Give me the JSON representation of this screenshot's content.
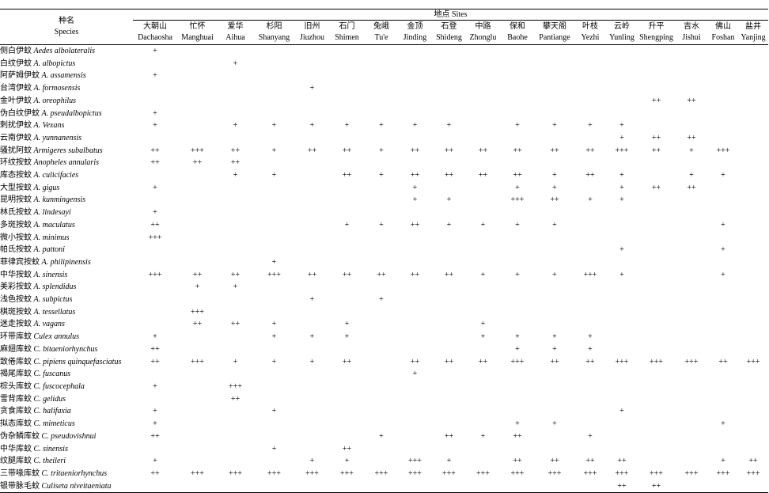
{
  "header": {
    "species_zh": "种名",
    "species_en": "Species",
    "sites_label": "地点  Sites"
  },
  "sites": [
    {
      "zh": "大朝山",
      "en": "Dachaosha"
    },
    {
      "zh": "忙怀",
      "en": "Manghuai"
    },
    {
      "zh": "爱华",
      "en": "Aihua"
    },
    {
      "zh": "杉阳",
      "en": "Shanyang"
    },
    {
      "zh": "旧州",
      "en": "Jiuzhou"
    },
    {
      "zh": "石门",
      "en": "Shimen"
    },
    {
      "zh": "兔峨",
      "en": "Tu'e"
    },
    {
      "zh": "金顶",
      "en": "Jinding"
    },
    {
      "zh": "石登",
      "en": "Shideng"
    },
    {
      "zh": "中路",
      "en": "Zhonglu"
    },
    {
      "zh": "保和",
      "en": "Baohe"
    },
    {
      "zh": "攀天阁",
      "en": "Pantiange"
    },
    {
      "zh": "叶枝",
      "en": "Yezhi"
    },
    {
      "zh": "云岭",
      "en": "Yunling"
    },
    {
      "zh": "升平",
      "en": "Shengping"
    },
    {
      "zh": "吉水",
      "en": "Jishui"
    },
    {
      "zh": "佛山",
      "en": "Foshan"
    },
    {
      "zh": "盐井",
      "en": "Yanjing"
    }
  ],
  "rows": [
    {
      "zh": "侧白伊蚊",
      "sci": "Aedes albolateralis",
      "v": [
        "+",
        "",
        "",
        "",
        "",
        "",
        "",
        "",
        "",
        "",
        "",
        "",
        "",
        "",
        "",
        "",
        "",
        ""
      ]
    },
    {
      "zh": "白纹伊蚊",
      "sci": "A. albopictus",
      "v": [
        "",
        "",
        "+",
        "",
        "",
        "",
        "",
        "",
        "",
        "",
        "",
        "",
        "",
        "",
        "",
        "",
        "",
        ""
      ]
    },
    {
      "zh": "阿萨姆伊蚊",
      "sci": "A. assamensis",
      "v": [
        "+",
        "",
        "",
        "",
        "",
        "",
        "",
        "",
        "",
        "",
        "",
        "",
        "",
        "",
        "",
        "",
        "",
        ""
      ]
    },
    {
      "zh": "台湾伊蚊",
      "sci": "A. formosensis",
      "v": [
        "",
        "",
        "",
        "",
        "+",
        "",
        "",
        "",
        "",
        "",
        "",
        "",
        "",
        "",
        "",
        "",
        "",
        ""
      ]
    },
    {
      "zh": "金叶伊蚊",
      "sci": "A. oreophilus",
      "v": [
        "",
        "",
        "",
        "",
        "",
        "",
        "",
        "",
        "",
        "",
        "",
        "",
        "",
        "",
        "++",
        "++",
        "",
        ""
      ]
    },
    {
      "zh": "伪白纹伊蚊",
      "sci": "A. pseudalbopictus",
      "v": [
        "+",
        "",
        "",
        "",
        "",
        "",
        "",
        "",
        "",
        "",
        "",
        "",
        "",
        "",
        "",
        "",
        "",
        ""
      ]
    },
    {
      "zh": "刺扰伊蚊",
      "sci": "A. Vexans",
      "v": [
        "+",
        "",
        "+",
        "+",
        "+",
        "+",
        "+",
        "+",
        "+",
        "",
        "+",
        "+",
        "+",
        "+",
        "",
        "",
        "",
        ""
      ]
    },
    {
      "zh": "云南伊蚊",
      "sci": "A. yunnanensis",
      "v": [
        "",
        "",
        "",
        "",
        "",
        "",
        "",
        "",
        "",
        "",
        "",
        "",
        "",
        "+",
        "++",
        "++",
        "",
        ""
      ]
    },
    {
      "zh": "骚扰阿蚊",
      "sci": "Armigeres subalbatus",
      "v": [
        "++",
        "+++",
        "++",
        "+",
        "++",
        "++",
        "+",
        "++",
        "++",
        "++",
        "++",
        "++",
        "++",
        "+++",
        "++",
        "+",
        "+++",
        ""
      ]
    },
    {
      "zh": "环纹按蚊",
      "sci": "Anopheles annularis",
      "v": [
        "++",
        "++",
        "++",
        "",
        "",
        "",
        "",
        "",
        "",
        "",
        "",
        "",
        "",
        "",
        "",
        "",
        "",
        ""
      ]
    },
    {
      "zh": "库态按蚊",
      "sci": "A. culicifacies",
      "v": [
        "",
        "",
        "+",
        "+",
        "",
        "++",
        "+",
        "++",
        "++",
        "++",
        "++",
        "+",
        "++",
        "+",
        "",
        "+",
        "+",
        ""
      ]
    },
    {
      "zh": "大型按蚊",
      "sci": "A. gigus",
      "v": [
        "+",
        "",
        "",
        "",
        "",
        "",
        "",
        "+",
        "",
        "",
        "+",
        "+",
        "",
        "+",
        "++",
        "++",
        "",
        ""
      ]
    },
    {
      "zh": "昆明按蚊",
      "sci": "A. kunmingensis",
      "v": [
        "",
        "",
        "",
        "",
        "",
        "",
        "",
        "+",
        "+",
        "",
        "+++",
        "++",
        "+",
        "+",
        "",
        "",
        "",
        ""
      ]
    },
    {
      "zh": "林氏按蚊",
      "sci": "A. lindesayi",
      "v": [
        "+",
        "",
        "",
        "",
        "",
        "",
        "",
        "",
        "",
        "",
        "",
        "",
        "",
        "",
        "",
        "",
        "",
        ""
      ]
    },
    {
      "zh": "多斑按蚊",
      "sci": "A. maculatus",
      "v": [
        "++",
        "",
        "",
        "",
        "",
        "+",
        "+",
        "++",
        "+",
        "+",
        "+",
        "+",
        "",
        "",
        "",
        "",
        "+",
        ""
      ]
    },
    {
      "zh": "微小按蚊",
      "sci": "A. minimus",
      "v": [
        "+++",
        "",
        "",
        "",
        "",
        "",
        "",
        "",
        "",
        "",
        "",
        "",
        "",
        "",
        "",
        "",
        "",
        ""
      ]
    },
    {
      "zh": "帕氏按蚊",
      "sci": "A. pattoni",
      "v": [
        "",
        "",
        "",
        "",
        "",
        "",
        "",
        "",
        "",
        "",
        "",
        "",
        "",
        "+",
        "",
        "",
        "+",
        ""
      ]
    },
    {
      "zh": "菲律宾按蚊",
      "sci": "A. philipinensis",
      "v": [
        "",
        "",
        "",
        "+",
        "",
        "",
        "",
        "",
        "",
        "",
        "",
        "",
        "",
        "",
        "",
        "",
        "",
        ""
      ]
    },
    {
      "zh": "中华按蚊",
      "sci": "A. sinensis",
      "v": [
        "+++",
        "++",
        "++",
        "+++",
        "++",
        "++",
        "++",
        "++",
        "++",
        "+",
        "+",
        "+",
        "+++",
        "+",
        "",
        "",
        "+",
        ""
      ]
    },
    {
      "zh": "美彩按蚊",
      "sci": "A. splendidus",
      "v": [
        "",
        "+",
        "+",
        "",
        "",
        "",
        "",
        "",
        "",
        "",
        "",
        "",
        "",
        "",
        "",
        "",
        "",
        ""
      ]
    },
    {
      "zh": "浅色按蚊",
      "sci": "A. subpictus",
      "v": [
        "",
        "",
        "",
        "",
        "+",
        "",
        "+",
        "",
        "",
        "",
        "",
        "",
        "",
        "",
        "",
        "",
        "",
        ""
      ]
    },
    {
      "zh": "棋斑按蚊",
      "sci": "A. tessellatus",
      "v": [
        "",
        "+++",
        "",
        "",
        "",
        "",
        "",
        "",
        "",
        "",
        "",
        "",
        "",
        "",
        "",
        "",
        "",
        ""
      ]
    },
    {
      "zh": "迷走按蚊",
      "sci": "A. vagans",
      "v": [
        "",
        "++",
        "++",
        "+",
        "",
        "+",
        "",
        "",
        "",
        "+",
        "",
        "",
        "",
        "",
        "",
        "",
        "",
        ""
      ]
    },
    {
      "zh": "环带库蚊",
      "sci": "Culex annulus",
      "v": [
        "+",
        "",
        "",
        "+",
        "+",
        "+",
        "",
        "",
        "",
        "+",
        "+",
        "+",
        "+",
        "",
        "",
        "",
        "",
        ""
      ]
    },
    {
      "zh": "麻翅库蚊",
      "sci": "C. bitaeniorhynchus",
      "v": [
        "++",
        "",
        "",
        "",
        "",
        "",
        "",
        "",
        "",
        "",
        "+",
        "+",
        "+",
        "",
        "",
        "",
        "",
        ""
      ]
    },
    {
      "zh": "致倦库蚊",
      "sci": "C. pipiens quinquefasciatus",
      "v": [
        "++",
        "+++",
        "+",
        "+",
        "+",
        "++",
        "",
        "++",
        "++",
        "++",
        "+++",
        "++",
        "++",
        "+++",
        "+++",
        "+++",
        "++",
        "+++"
      ]
    },
    {
      "zh": "褐尾库蚊",
      "sci": "C. fuscanus",
      "v": [
        "",
        "",
        "",
        "",
        "",
        "",
        "",
        "+",
        "",
        "",
        "",
        "",
        "",
        "",
        "",
        "",
        "",
        ""
      ]
    },
    {
      "zh": "棕头库蚊",
      "sci": "C. fuscocephala",
      "v": [
        "+",
        "",
        "+++",
        "",
        "",
        "",
        "",
        "",
        "",
        "",
        "",
        "",
        "",
        "",
        "",
        "",
        "",
        ""
      ]
    },
    {
      "zh": "雪背库蚊",
      "sci": "C. gelidus",
      "v": [
        "",
        "",
        "++",
        "",
        "",
        "",
        "",
        "",
        "",
        "",
        "",
        "",
        "",
        "",
        "",
        "",
        "",
        ""
      ]
    },
    {
      "zh": "贪食库蚊",
      "sci": "C. halifaxia",
      "v": [
        "+",
        "",
        "",
        "+",
        "",
        "",
        "",
        "",
        "",
        "",
        "",
        "",
        "",
        "+",
        "",
        "",
        "",
        ""
      ]
    },
    {
      "zh": "拟态库蚊",
      "sci": "C. mimeticus",
      "v": [
        "+",
        "",
        "",
        "",
        "",
        "",
        "",
        "",
        "",
        "",
        "+",
        "+",
        "",
        "",
        "",
        "",
        "+",
        ""
      ]
    },
    {
      "zh": "伪杂鳞库蚊",
      "sci": "C. pseudovishnui",
      "v": [
        "++",
        "",
        "",
        "",
        "",
        "",
        "+",
        "",
        "++",
        "+",
        "++",
        "",
        "+",
        "",
        "",
        "",
        "",
        ""
      ]
    },
    {
      "zh": "中华库蚊",
      "sci": "C. sinensis",
      "v": [
        "",
        "",
        "",
        "+",
        "",
        "++",
        "",
        "",
        "",
        "",
        "",
        "",
        "",
        "",
        "",
        "",
        "",
        ""
      ]
    },
    {
      "zh": "纹腿库蚊",
      "sci": "C. theileri",
      "v": [
        "+",
        "",
        "",
        "",
        "+",
        "+",
        "",
        "+++",
        "+",
        "",
        "++",
        "++",
        "++",
        "++",
        "",
        "",
        "+",
        "++"
      ]
    },
    {
      "zh": "三带喙库蚊",
      "sci": "C. tritaeniorhynchus",
      "v": [
        "++",
        "+++",
        "+++",
        "+++",
        "+++",
        "+++",
        "+++",
        "+++",
        "+++",
        "+++",
        "+++",
        "+++",
        "+++",
        "+++",
        "+++",
        "+++",
        "+++",
        "+++"
      ]
    },
    {
      "zh": "银带脉毛蚊",
      "sci": "Culiseta niveitaeniata",
      "v": [
        "",
        "",
        "",
        "",
        "",
        "",
        "",
        "",
        "",
        "",
        "",
        "",
        "",
        "++",
        "++",
        "",
        "",
        ""
      ]
    }
  ]
}
